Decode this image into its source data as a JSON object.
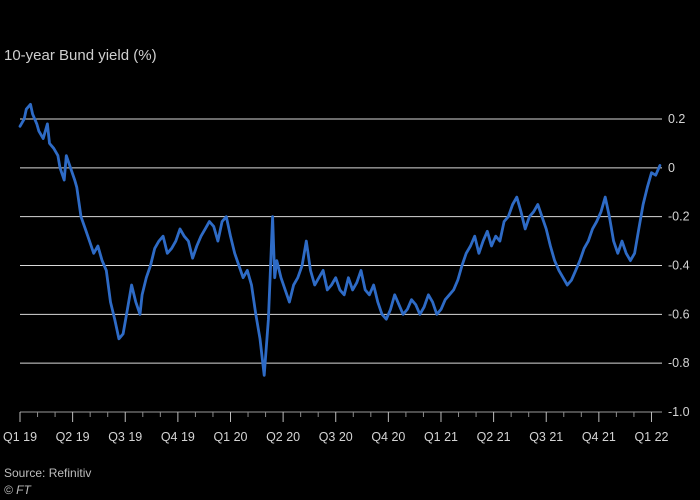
{
  "chart_data": {
    "type": "line",
    "subtitle": "10-year Bund yield (%)",
    "source": "Source: Refinitiv",
    "credit": "© FT",
    "ylim": [
      -1.0,
      0.2
    ],
    "yticks": [
      0.2,
      0,
      -0.2,
      -0.4,
      -0.6,
      -0.8,
      -1.0
    ],
    "ytick_labels": [
      "0.2",
      "0",
      "-0.2",
      "-0.4",
      "-0.6",
      "-0.8",
      "-1.0"
    ],
    "xticks": [
      {
        "label": "Q1 19",
        "x": 2019.0
      },
      {
        "label": "Q2 19",
        "x": 2019.25
      },
      {
        "label": "Q3 19",
        "x": 2019.5
      },
      {
        "label": "Q4 19",
        "x": 2019.75
      },
      {
        "label": "Q1 20",
        "x": 2020.0
      },
      {
        "label": "Q2 20",
        "x": 2020.25
      },
      {
        "label": "Q3 20",
        "x": 2020.5
      },
      {
        "label": "Q4 20",
        "x": 2020.75
      },
      {
        "label": "Q1 21",
        "x": 2021.0
      },
      {
        "label": "Q2 21",
        "x": 2021.25
      },
      {
        "label": "Q3 21",
        "x": 2021.5
      },
      {
        "label": "Q4 21",
        "x": 2021.75
      },
      {
        "label": "Q1 22",
        "x": 2022.0
      }
    ],
    "xlim": [
      2019.0,
      2022.05
    ],
    "grid": "horizontal",
    "line_color": "#2e6bc6",
    "series": [
      {
        "x": [
          2019.0,
          2019.02,
          2019.03,
          2019.05,
          2019.06,
          2019.08,
          2019.09,
          2019.11,
          2019.13,
          2019.14,
          2019.16,
          2019.18,
          2019.19,
          2019.21,
          2019.22,
          2019.24,
          2019.26,
          2019.27,
          2019.29,
          2019.31,
          2019.33,
          2019.35,
          2019.37,
          2019.39,
          2019.41,
          2019.43,
          2019.45,
          2019.47,
          2019.49,
          2019.51,
          2019.53,
          2019.55,
          2019.57,
          2019.58,
          2019.6,
          2019.62,
          2019.64,
          2019.66,
          2019.68,
          2019.7,
          2019.72,
          2019.74,
          2019.76,
          2019.78,
          2019.8,
          2019.82,
          2019.84,
          2019.86,
          2019.88,
          2019.9,
          2019.92,
          2019.94,
          2019.96,
          2019.98,
          2020.0,
          2020.02,
          2020.04,
          2020.06,
          2020.08,
          2020.1,
          2020.12,
          2020.14,
          2020.16,
          2020.18,
          2020.2,
          2020.21,
          2020.22,
          2020.24,
          2020.26,
          2020.28,
          2020.3,
          2020.32,
          2020.34,
          2020.36,
          2020.38,
          2020.4,
          2020.42,
          2020.44,
          2020.46,
          2020.48,
          2020.5,
          2020.52,
          2020.54,
          2020.56,
          2020.58,
          2020.6,
          2020.62,
          2020.64,
          2020.66,
          2020.68,
          2020.7,
          2020.72,
          2020.74,
          2020.76,
          2020.78,
          2020.8,
          2020.82,
          2020.84,
          2020.86,
          2020.88,
          2020.9,
          2020.92,
          2020.94,
          2020.96,
          2020.98,
          2021.0,
          2021.02,
          2021.04,
          2021.06,
          2021.08,
          2021.1,
          2021.12,
          2021.14,
          2021.16,
          2021.18,
          2021.2,
          2021.22,
          2021.24,
          2021.26,
          2021.28,
          2021.3,
          2021.32,
          2021.34,
          2021.36,
          2021.38,
          2021.4,
          2021.42,
          2021.44,
          2021.46,
          2021.48,
          2021.5,
          2021.52,
          2021.54,
          2021.56,
          2021.58,
          2021.6,
          2021.62,
          2021.64,
          2021.66,
          2021.68,
          2021.7,
          2021.72,
          2021.74,
          2021.76,
          2021.78,
          2021.8,
          2021.82,
          2021.84,
          2021.86,
          2021.88,
          2021.9,
          2021.92,
          2021.94,
          2021.96,
          2021.98,
          2022.0,
          2022.02,
          2022.04
        ],
        "values": [
          0.17,
          0.2,
          0.24,
          0.26,
          0.22,
          0.18,
          0.15,
          0.12,
          0.18,
          0.1,
          0.08,
          0.05,
          0.0,
          -0.05,
          0.05,
          0.0,
          -0.05,
          -0.08,
          -0.2,
          -0.25,
          -0.3,
          -0.35,
          -0.32,
          -0.38,
          -0.42,
          -0.55,
          -0.62,
          -0.7,
          -0.68,
          -0.58,
          -0.48,
          -0.55,
          -0.6,
          -0.52,
          -0.45,
          -0.4,
          -0.33,
          -0.3,
          -0.28,
          -0.35,
          -0.33,
          -0.3,
          -0.25,
          -0.28,
          -0.3,
          -0.37,
          -0.32,
          -0.28,
          -0.25,
          -0.22,
          -0.24,
          -0.3,
          -0.22,
          -0.2,
          -0.28,
          -0.35,
          -0.4,
          -0.45,
          -0.42,
          -0.48,
          -0.6,
          -0.7,
          -0.85,
          -0.62,
          -0.2,
          -0.45,
          -0.38,
          -0.45,
          -0.5,
          -0.55,
          -0.48,
          -0.45,
          -0.4,
          -0.3,
          -0.42,
          -0.48,
          -0.45,
          -0.42,
          -0.5,
          -0.48,
          -0.45,
          -0.5,
          -0.52,
          -0.45,
          -0.5,
          -0.47,
          -0.42,
          -0.5,
          -0.52,
          -0.48,
          -0.55,
          -0.6,
          -0.62,
          -0.58,
          -0.52,
          -0.56,
          -0.6,
          -0.58,
          -0.54,
          -0.56,
          -0.6,
          -0.57,
          -0.52,
          -0.55,
          -0.6,
          -0.58,
          -0.54,
          -0.52,
          -0.5,
          -0.46,
          -0.4,
          -0.35,
          -0.32,
          -0.28,
          -0.35,
          -0.3,
          -0.26,
          -0.32,
          -0.28,
          -0.3,
          -0.22,
          -0.2,
          -0.15,
          -0.12,
          -0.18,
          -0.25,
          -0.2,
          -0.18,
          -0.15,
          -0.2,
          -0.25,
          -0.32,
          -0.38,
          -0.42,
          -0.45,
          -0.48,
          -0.46,
          -0.42,
          -0.38,
          -0.33,
          -0.3,
          -0.25,
          -0.22,
          -0.18,
          -0.12,
          -0.2,
          -0.3,
          -0.35,
          -0.3,
          -0.35,
          -0.38,
          -0.35,
          -0.25,
          -0.15,
          -0.08,
          -0.02,
          -0.03,
          0.01
        ]
      }
    ]
  }
}
